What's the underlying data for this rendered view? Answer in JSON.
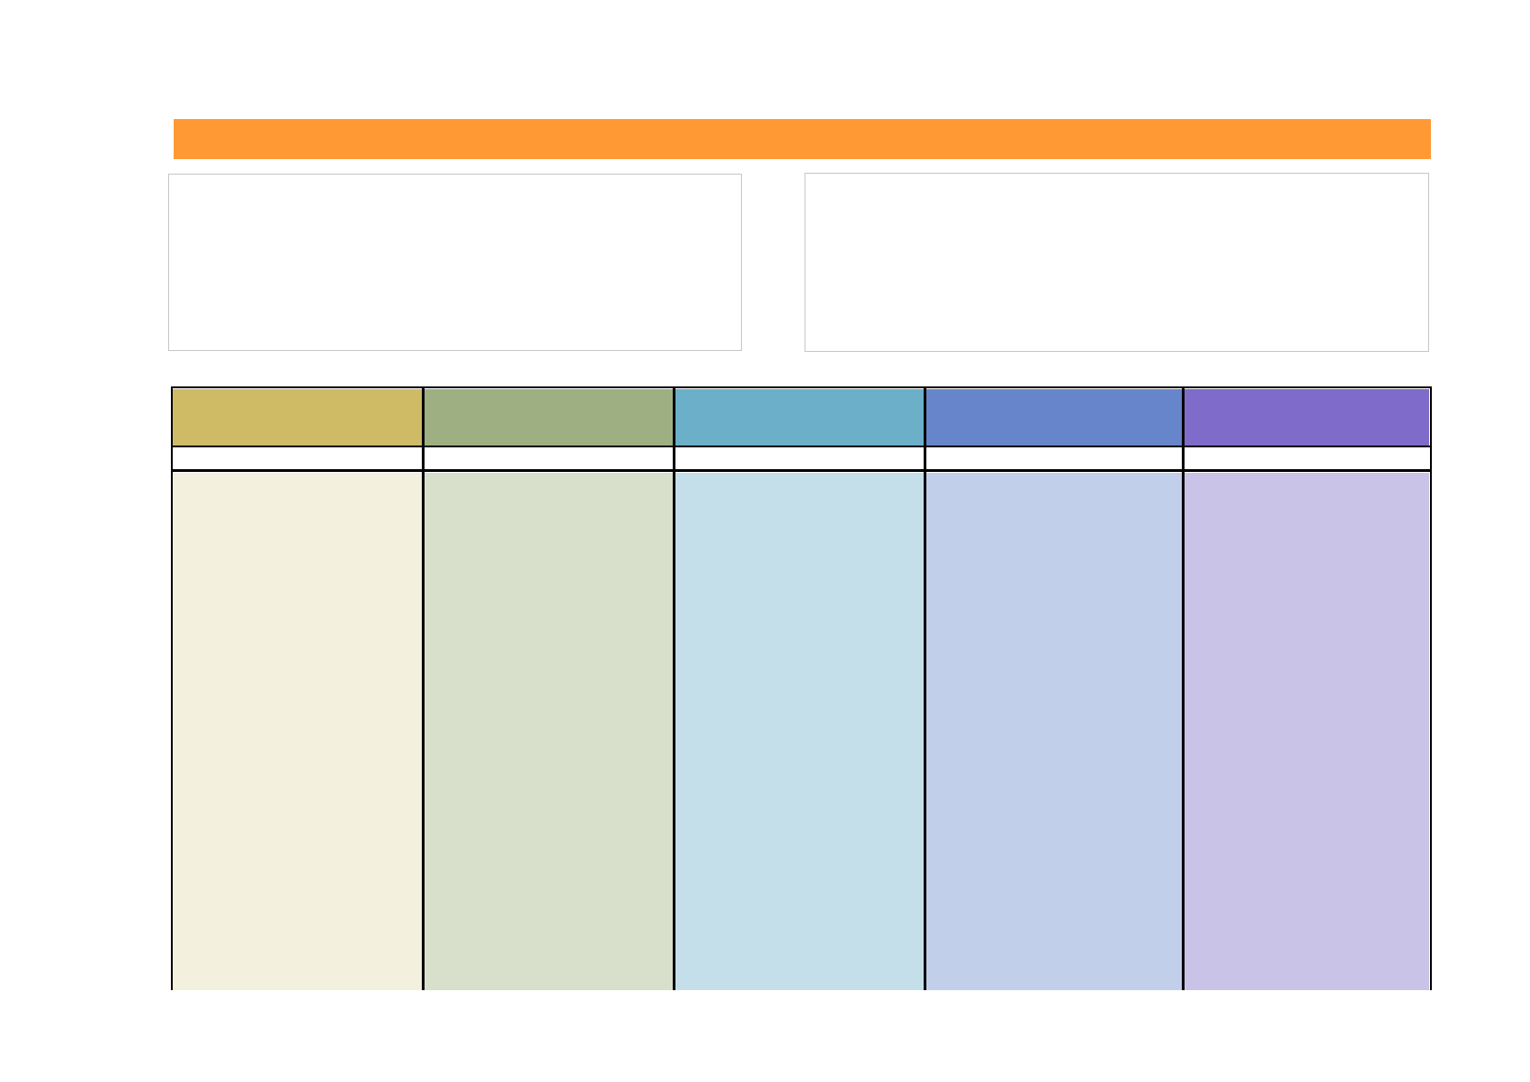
{
  "header": {
    "title": ""
  },
  "info_boxes": {
    "left_text": "",
    "right_text": ""
  },
  "table": {
    "columns": [
      {
        "heading": "",
        "subheading": "",
        "body": "",
        "head_color": "#cfbb65",
        "body_color": "#f3f0dd"
      },
      {
        "heading": "",
        "subheading": "",
        "body": "",
        "head_color": "#9eb082",
        "body_color": "#d8e0cc"
      },
      {
        "heading": "",
        "subheading": "",
        "body": "",
        "head_color": "#6bafc8",
        "body_color": "#c4dfe9"
      },
      {
        "heading": "",
        "subheading": "",
        "body": "",
        "head_color": "#6785cb",
        "body_color": "#c1cfea"
      },
      {
        "heading": "",
        "subheading": "",
        "body": "",
        "head_color": "#7f6bc9",
        "body_color": "#c9c3e8"
      }
    ]
  },
  "colors": {
    "title_bar": "#ff9933",
    "box_border": "#c6c6c6",
    "grid_line": "#000000"
  }
}
